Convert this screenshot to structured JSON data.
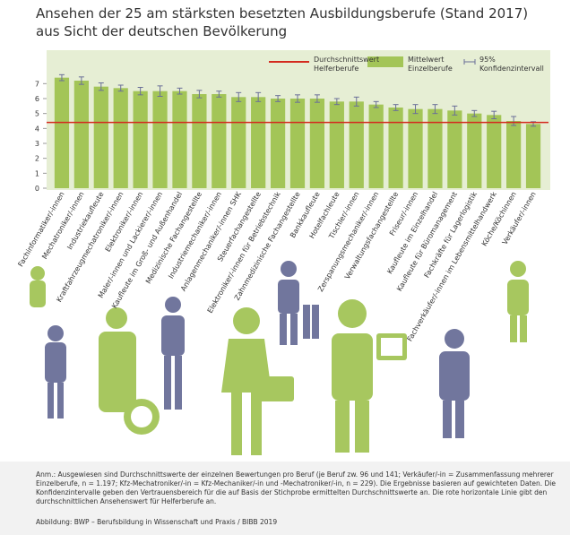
{
  "chart_data": {
    "type": "bar",
    "title": "Ansehen der 25 am stärksten besetzten Ausbildungsberufe (Stand 2017)",
    "subtitle": "aus Sicht der deutschen Bevölkerung",
    "categories": [
      "Fachinformatiker/-innen",
      "Mechatroniker/-innen",
      "Industriekaufleute",
      "Kraftfahrzeugmechatroniker/-innen",
      "Elektroniker/-innen",
      "Maler/-innen und Lackierer/-innen",
      "Kaufleute im Groß- und Außenhandel",
      "Medizinische Fachangestellte",
      "Industriemechaniker/-innen",
      "Anlagenmechaniker/-innen SHK",
      "Steuerfachangestellte",
      "Elektroniker/-innen für Betriebstechnik",
      "Zahnmedizinische Fachangestellte",
      "Bankkaufleute",
      "Hotelfachleute",
      "Tischler/-innen",
      "Zerspanungsmechaniker/-innen",
      "Verwaltungsfachangestellte",
      "Friseur/-innen",
      "Kaufleute im Einzelhandel",
      "Kaufleute für Büromanagement",
      "Fachkräfte für Lagerlogistik",
      "Fachverkäufer/-innen im Lebensmittelhandwerk",
      "Köche/Köchinnen",
      "Verkäufer/-innen"
    ],
    "series": [
      {
        "name": "Mittelwert Einzelberufe",
        "color": "#a3c557",
        "values": [
          7.4,
          7.2,
          6.8,
          6.7,
          6.5,
          6.5,
          6.5,
          6.3,
          6.3,
          6.1,
          6.1,
          6.0,
          6.0,
          6.0,
          5.8,
          5.8,
          5.6,
          5.4,
          5.3,
          5.3,
          5.2,
          5.0,
          4.9,
          4.5,
          4.3
        ],
        "errors": [
          0.2,
          0.25,
          0.25,
          0.2,
          0.25,
          0.35,
          0.2,
          0.25,
          0.2,
          0.3,
          0.3,
          0.2,
          0.25,
          0.25,
          0.2,
          0.3,
          0.2,
          0.2,
          0.3,
          0.3,
          0.3,
          0.2,
          0.25,
          0.3,
          0.15
        ]
      }
    ],
    "reference_line": {
      "name": "Durchschnittswert Helferberufe",
      "value": 4.4,
      "color": "#d42a1e"
    },
    "error_label": "95% Konfidenzintervall",
    "error_color": "#6a6f98",
    "ylim": [
      0,
      9
    ],
    "yticks": [
      0,
      1,
      2,
      3,
      4,
      5,
      6,
      7
    ],
    "note": "Anm.: Ausgewiesen sind Durchschnittswerte der einzelnen Bewertungen pro Beruf (je Beruf zw. 96 und 141; Verkäufer/-in = Zusammenfassung mehrerer Einzelberufe, n = 1.197; Kfz-Mechatroniker/-in = Kfz-Mechaniker/-in und -Mechatroniker/-in, n = 229). Die Ergebnisse basieren auf gewichteten Daten. Die Konfidenzintervalle geben den Vertrauensbereich für die auf Basis der Stichprobe ermittelten Durchschnittswerte an. Die rote horizontale Linie gibt den durchschnittlichen Ansehenswert für Helferberufe an.",
    "source": "Abbildung: BWP – Berufsbildung in Wissenschaft und Praxis / BIBB 2019"
  }
}
